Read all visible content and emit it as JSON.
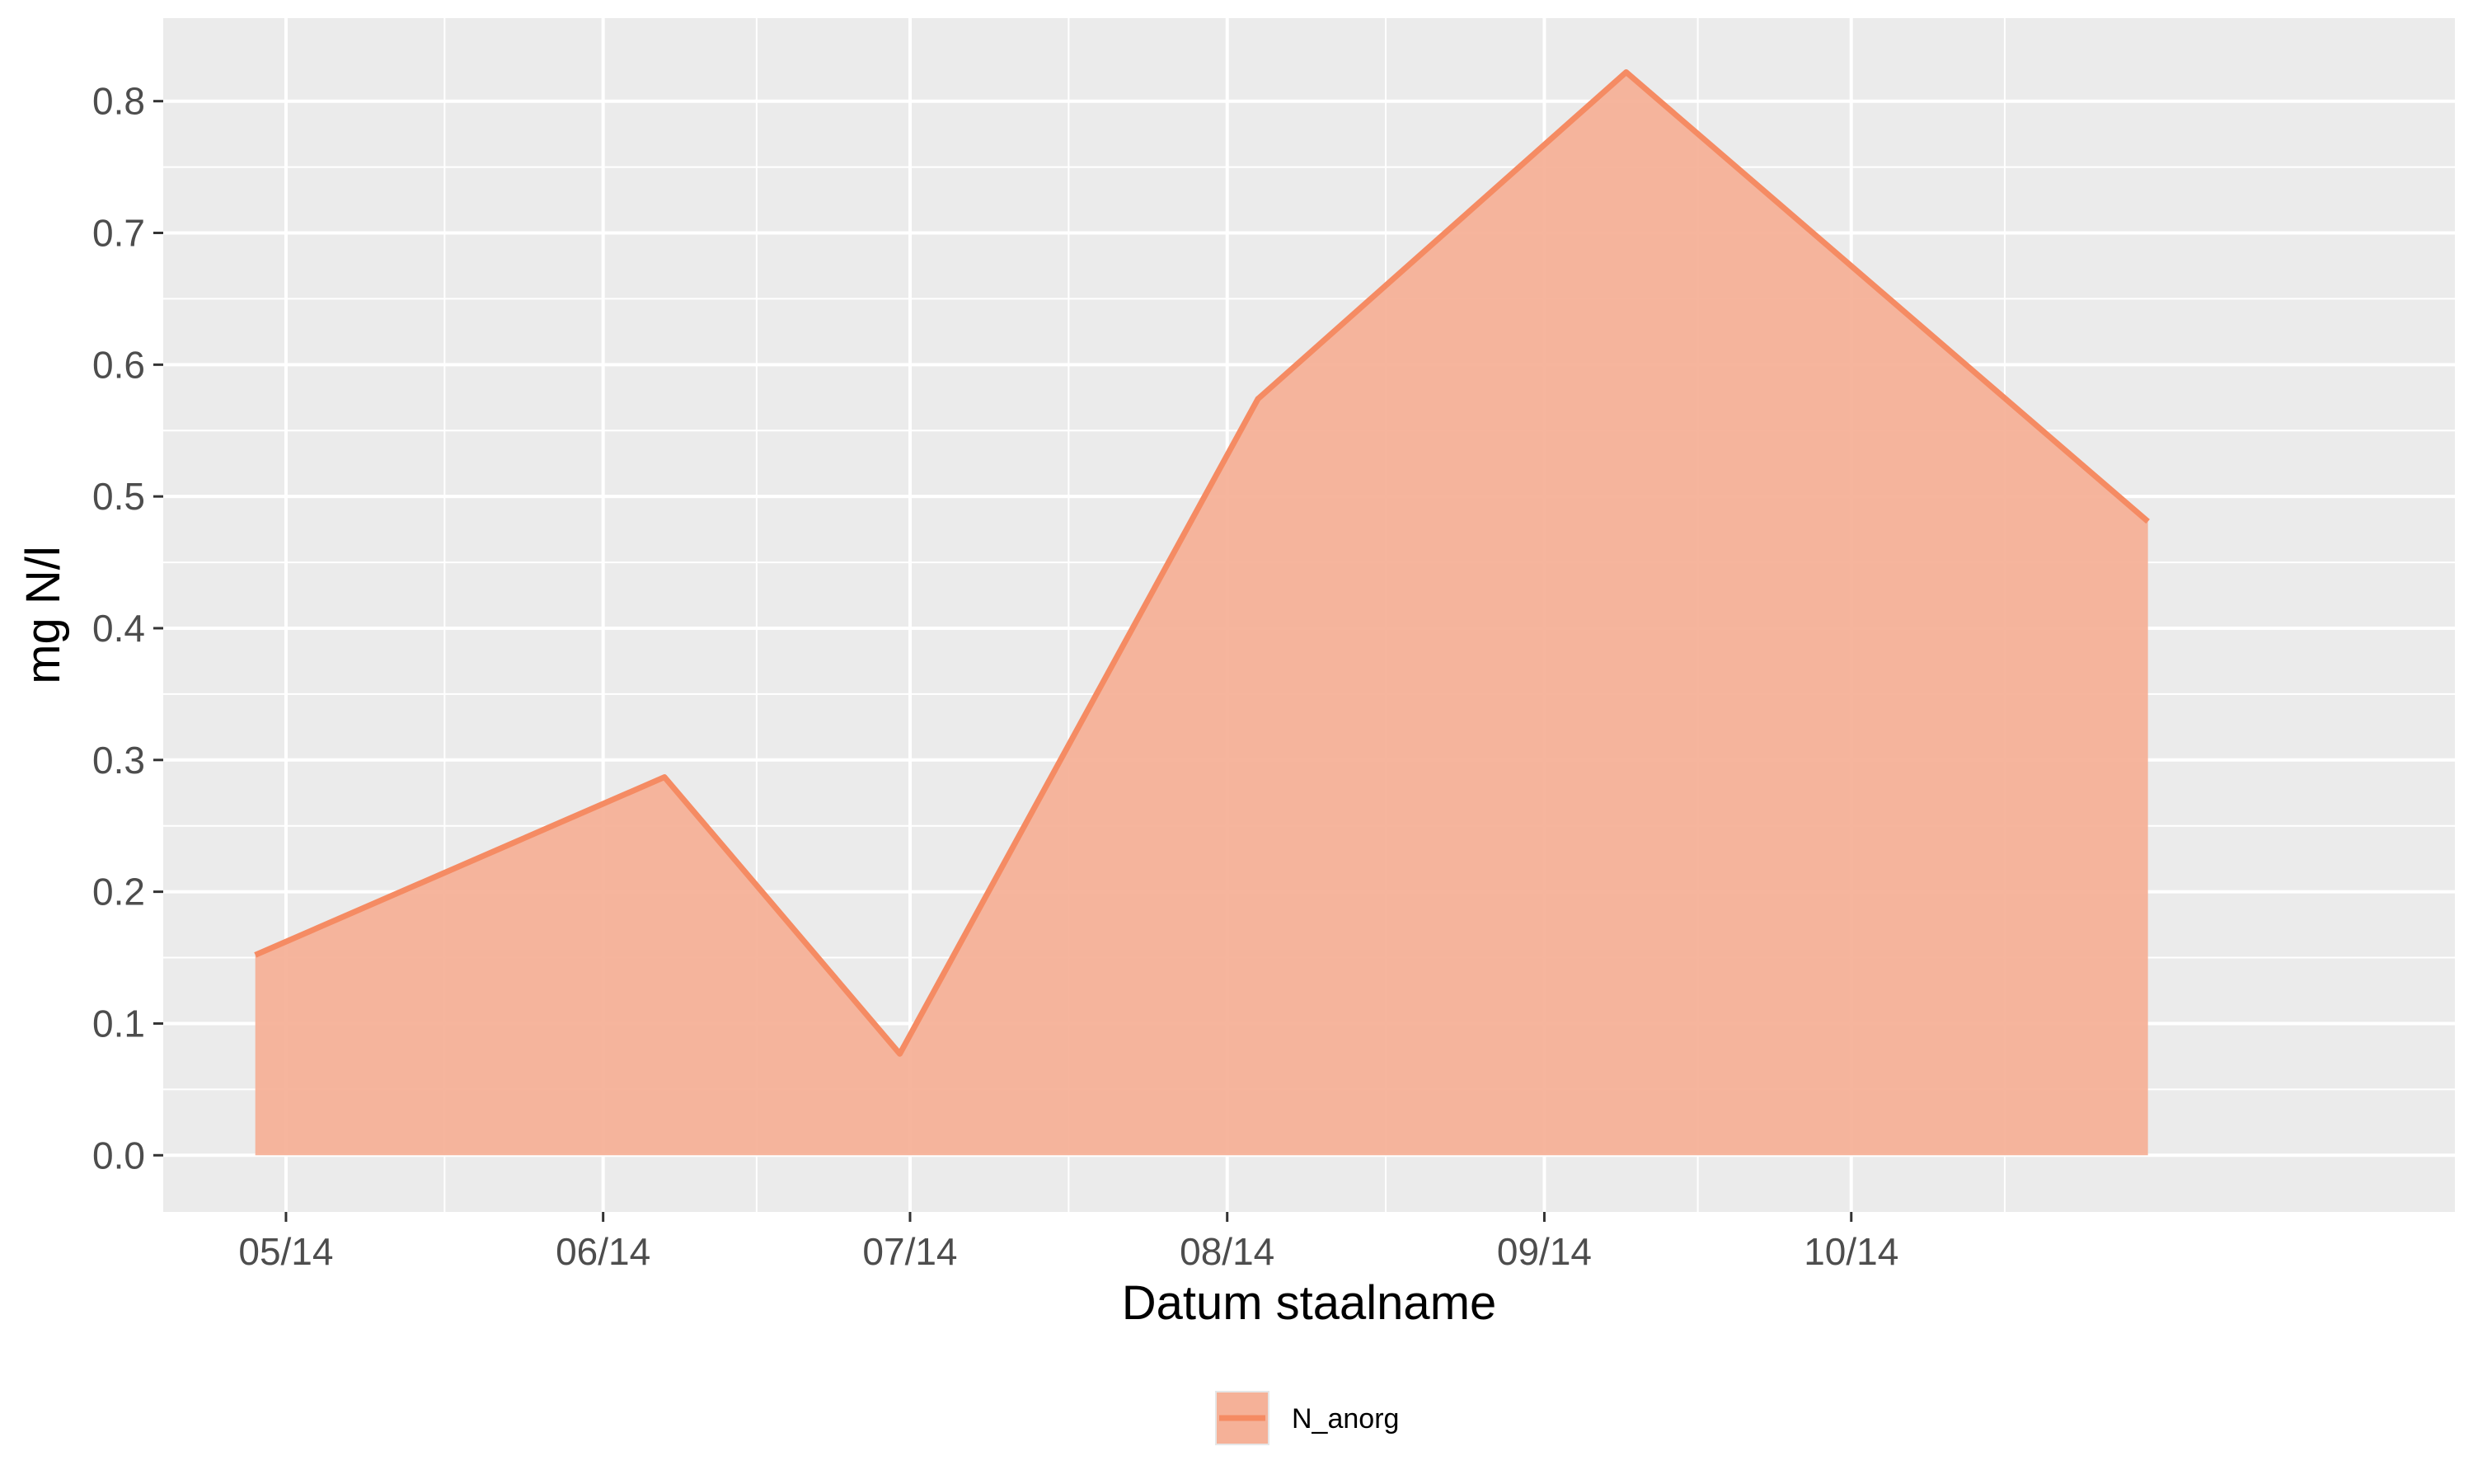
{
  "colors": {
    "panel": "#ebebeb",
    "grid": "#ffffff",
    "series_line": "#f58b63",
    "series_fill": "#f5b198",
    "tick_text": "#4d4d4d",
    "tick_mark": "#333333"
  },
  "chart_data": {
    "type": "area",
    "title": "",
    "xlabel": "Datum staalname",
    "ylabel": "mg N/l",
    "x_tick_labels": [
      "05/14",
      "06/14",
      "07/14",
      "08/14",
      "09/14",
      "10/14"
    ],
    "x_ticks": [
      "2014-05-01",
      "2014-06-01",
      "2014-07-01",
      "2014-08-01",
      "2014-09-01",
      "2014-10-01"
    ],
    "y_ticks": [
      0.0,
      0.1,
      0.2,
      0.3,
      0.4,
      0.5,
      0.6,
      0.7,
      0.8
    ],
    "y_tick_labels": [
      "0.0",
      "0.1",
      "0.2",
      "0.3",
      "0.4",
      "0.5",
      "0.6",
      "0.7",
      "0.8"
    ],
    "xlim": [
      "2014-04-19",
      "2014-11-29"
    ],
    "ylim": [
      -0.043,
      0.863
    ],
    "grid": true,
    "legend_position": "bottom",
    "series": [
      {
        "name": "N_anorg",
        "x": [
          "2014-04-28",
          "2014-06-07",
          "2014-06-30",
          "2014-08-04",
          "2014-09-09",
          "2014-10-30"
        ],
        "values": [
          0.152,
          0.287,
          0.077,
          0.574,
          0.822,
          0.481
        ]
      }
    ]
  }
}
